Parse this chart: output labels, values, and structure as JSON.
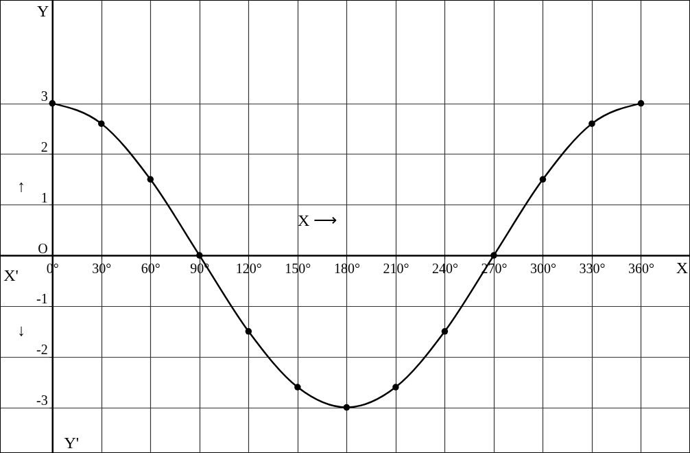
{
  "chart_data": {
    "type": "line",
    "xlabel": "X",
    "ylabel": "Y",
    "x": [
      0,
      30,
      60,
      90,
      120,
      150,
      180,
      210,
      240,
      270,
      300,
      330,
      360
    ],
    "series": [
      {
        "color": "#000000",
        "values": [
          3,
          2.6,
          1.5,
          0,
          -1.5,
          -2.6,
          -3,
          -2.6,
          -1.5,
          0,
          1.5,
          2.6,
          3
        ]
      }
    ],
    "xlim": [
      -32,
      390
    ],
    "ylim": [
      -3.9,
      5.04
    ],
    "xticks": [
      {
        "value": 0,
        "label": "0°"
      },
      {
        "value": 30,
        "label": "30°"
      },
      {
        "value": 60,
        "label": "60°"
      },
      {
        "value": 90,
        "label": "90°"
      },
      {
        "value": 120,
        "label": "120°"
      },
      {
        "value": 150,
        "label": "150°"
      },
      {
        "value": 180,
        "label": "180°"
      },
      {
        "value": 210,
        "label": "210°"
      },
      {
        "value": 240,
        "label": "240°"
      },
      {
        "value": 270,
        "label": "270°"
      },
      {
        "value": 300,
        "label": "300°"
      },
      {
        "value": 330,
        "label": "330°"
      },
      {
        "value": 360,
        "label": "360°"
      }
    ],
    "yticks": [
      3,
      2,
      1,
      {
        "value": 0,
        "label": "O"
      },
      -1,
      -2,
      -3
    ],
    "annotations": [
      "X'",
      "Y'",
      "X ⟶",
      "↑",
      "↓"
    ],
    "grid": true,
    "marker": "circle",
    "line_style": "solid"
  }
}
